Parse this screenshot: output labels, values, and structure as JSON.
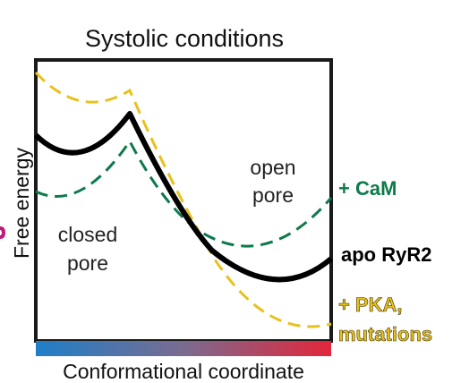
{
  "title": "Systolic conditions",
  "y_axis_label": "Free energy",
  "x_axis_label": "Conformational coordinate",
  "regions": {
    "open_pore": [
      "open",
      "pore"
    ],
    "closed_pore": [
      "closed",
      "pore"
    ]
  },
  "curves": [
    {
      "id": "cam",
      "label_lines": [
        "+ CaM"
      ],
      "color": "#0d7a4b",
      "style": "dashed"
    },
    {
      "id": "apo",
      "label_lines": [
        "apo RyR2"
      ],
      "color": "#000000",
      "style": "solid"
    },
    {
      "id": "pka",
      "label_lines": [
        "+ PKA,",
        "mutations"
      ],
      "color": "#e8c11d",
      "style": "dashed"
    }
  ],
  "gradient_bar": {
    "start_color": "#1e7fc8",
    "mid_color": "#7a6b90",
    "end_color": "#e3263a"
  },
  "edge_mark_color": "#c2187a"
}
